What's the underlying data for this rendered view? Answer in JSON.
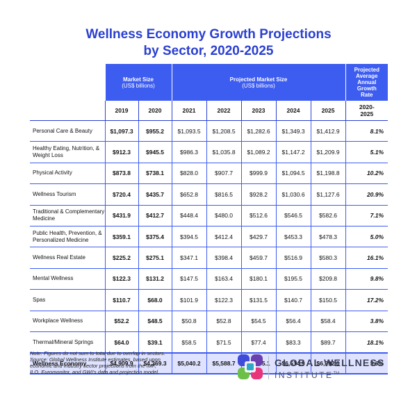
{
  "title": {
    "line1": "Wellness Economy Growth Projections",
    "line2": "by Sector, 2020-2025"
  },
  "header": {
    "market_size": "Market Size",
    "market_size_unit": "(US$ billions)",
    "projected": "Projected Market Size",
    "projected_unit": "(US$ billions)",
    "rate_l1": "Projected",
    "rate_l2": "Average",
    "rate_l3": "Annual",
    "rate_l4": "Growth",
    "rate_l5": "Rate"
  },
  "years": [
    "2019",
    "2020",
    "2021",
    "2022",
    "2023",
    "2024",
    "2025"
  ],
  "rate_period": {
    "l1": "2020-",
    "l2": "2025"
  },
  "rows": [
    {
      "label": "Personal Care & Beauty",
      "v": [
        "$1,097.3",
        "$955.2",
        "$1,093.5",
        "$1,208.5",
        "$1,282.6",
        "$1,349.3",
        "$1,412.9"
      ],
      "rate": "8.1%"
    },
    {
      "label": "Healthy Eating, Nutrition, & Weight Loss",
      "v": [
        "$912.3",
        "$945.5",
        "$986.3",
        "$1,035.8",
        "$1,089.2",
        "$1,147.2",
        "$1,209.9"
      ],
      "rate": "5.1%"
    },
    {
      "label": "Physical Activity",
      "v": [
        "$873.8",
        "$738.1",
        "$828.0",
        "$907.7",
        "$999.9",
        "$1,094.5",
        "$1,198.8"
      ],
      "rate": "10.2%"
    },
    {
      "label": "Wellness Tourism",
      "v": [
        "$720.4",
        "$435.7",
        "$652.8",
        "$816.5",
        "$928.2",
        "$1,030.6",
        "$1,127.6"
      ],
      "rate": "20.9%"
    },
    {
      "label": "Traditional & Complementary Medicine",
      "v": [
        "$431.9",
        "$412.7",
        "$448.4",
        "$480.0",
        "$512.6",
        "$546.5",
        "$582.6"
      ],
      "rate": "7.1%"
    },
    {
      "label": "Public Health, Prevention, & Personalized Medicine",
      "v": [
        "$359.1",
        "$375.4",
        "$394.5",
        "$412.4",
        "$429.7",
        "$453.3",
        "$478.3"
      ],
      "rate": "5.0%"
    },
    {
      "label": "Wellness Real Estate",
      "v": [
        "$225.2",
        "$275.1",
        "$347.1",
        "$398.4",
        "$459.7",
        "$516.9",
        "$580.3"
      ],
      "rate": "16.1%"
    },
    {
      "label": "Mental Wellness",
      "v": [
        "$122.3",
        "$131.2",
        "$147.5",
        "$163.4",
        "$180.1",
        "$195.5",
        "$209.8"
      ],
      "rate": "9.8%"
    },
    {
      "label": "Spas",
      "v": [
        "$110.7",
        "$68.0",
        "$101.9",
        "$122.3",
        "$131.5",
        "$140.7",
        "$150.5"
      ],
      "rate": "17.2%"
    },
    {
      "label": "Workplace Wellness",
      "v": [
        "$52.2",
        "$48.5",
        "$50.8",
        "$52.8",
        "$54.5",
        "$56.4",
        "$58.4"
      ],
      "rate": "3.8%"
    },
    {
      "label": "Thermal/Mineral Springs",
      "v": [
        "$64.0",
        "$39.1",
        "$58.5",
        "$71.5",
        "$77.4",
        "$83.3",
        "$89.7"
      ],
      "rate": "18.1%"
    }
  ],
  "total": {
    "label": "Wellness Economy",
    "v": [
      "$4,909.9",
      "$4,369.3",
      "$5,040.2",
      "$5,588.7",
      "$6,055.1",
      "$6,514.9",
      "$6,992.0"
    ],
    "rate": "9.9%"
  },
  "note": {
    "l1": "Note: Figures do not sum to total due to overlap in sectors.",
    "l2": "Source: Global Wellness Institute estimates, based upon",
    "l3": "economic and industry sector projections from the IMF,",
    "l4": "ILO, Euromonitor, and GWI's data and projection model."
  },
  "brand": {
    "line1": "GLOBAL WELLNESS",
    "line2": "INSTITUTE",
    "tm": "TM"
  },
  "colors": {
    "accent": "#3d5cf0",
    "title": "#2a3fd0",
    "total_bg": "#dfe3ff"
  }
}
